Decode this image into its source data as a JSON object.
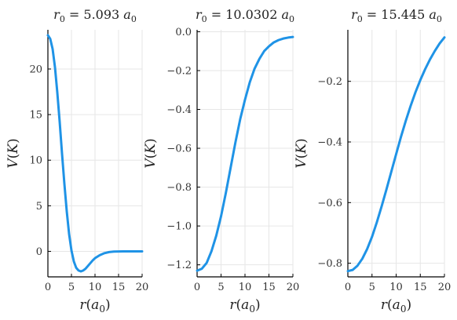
{
  "chart_data": [
    {
      "type": "line",
      "title": "r_0 = 5.093 a_0",
      "title_parts": {
        "var": "r",
        "sub": "0",
        "eq": " = 5.093 ",
        "unit": "a",
        "unit_sub": "0"
      },
      "xlabel": "r(a_0)",
      "ylabel": "V(K)",
      "xlim": [
        0,
        20
      ],
      "ylim": [
        -2.8,
        24.3
      ],
      "xticks": [
        0,
        5,
        10,
        15,
        20
      ],
      "xtick_labels": [
        "0",
        "5",
        "10",
        "15",
        "20"
      ],
      "yticks": [
        0,
        5,
        10,
        15,
        20
      ],
      "ytick_labels": [
        "0",
        "5",
        "10",
        "15",
        "20"
      ],
      "grid": true,
      "color": "#1f93e6",
      "x": [
        0,
        0.5,
        1,
        1.5,
        2,
        2.5,
        3,
        3.5,
        4,
        4.5,
        5,
        5.5,
        6,
        6.5,
        7,
        7.5,
        8,
        8.5,
        9,
        9.5,
        10,
        11,
        12,
        13,
        14,
        15,
        16,
        17,
        18,
        19,
        20
      ],
      "y": [
        23.7,
        23.3,
        22.2,
        20.2,
        17.4,
        14.2,
        10.7,
        7.4,
        4.4,
        1.9,
        0.1,
        -1.1,
        -1.8,
        -2.1,
        -2.2,
        -2.1,
        -1.9,
        -1.6,
        -1.3,
        -1.0,
        -0.75,
        -0.42,
        -0.2,
        -0.08,
        -0.03,
        -0.01,
        0,
        0,
        0,
        0,
        0
      ]
    },
    {
      "type": "line",
      "title": "r_0 = 10.0302 a_0",
      "title_parts": {
        "var": "r",
        "sub": "0",
        "eq": " = 10.0302 ",
        "unit": "a",
        "unit_sub": "0"
      },
      "xlabel": "r(a_0)",
      "ylabel": "V(K)",
      "xlim": [
        0,
        20
      ],
      "ylim": [
        -1.262,
        0.01
      ],
      "xticks": [
        0,
        5,
        10,
        15,
        20
      ],
      "xtick_labels": [
        "0",
        "5",
        "10",
        "15",
        "20"
      ],
      "yticks": [
        0,
        -0.2,
        -0.4,
        -0.6,
        -0.8,
        -1.0,
        -1.2
      ],
      "ytick_labels": [
        "0.0",
        "−0.2",
        "−0.4",
        "−0.6",
        "−0.8",
        "−1.0",
        "−1.2"
      ],
      "grid": true,
      "color": "#1f93e6",
      "x": [
        0,
        1,
        2,
        3,
        4,
        5,
        6,
        7,
        8,
        9,
        10,
        11,
        12,
        13,
        14,
        15,
        16,
        17,
        18,
        19,
        20
      ],
      "y": [
        -1.23,
        -1.22,
        -1.19,
        -1.13,
        -1.05,
        -0.95,
        -0.83,
        -0.7,
        -0.57,
        -0.45,
        -0.35,
        -0.26,
        -0.19,
        -0.14,
        -0.1,
        -0.075,
        -0.055,
        -0.043,
        -0.035,
        -0.03,
        -0.027
      ]
    },
    {
      "type": "line",
      "title": "r_0 = 15.445 a_0",
      "title_parts": {
        "var": "r",
        "sub": "0",
        "eq": " = 15.445 ",
        "unit": "a",
        "unit_sub": "0"
      },
      "xlabel": "r(a_0)",
      "ylabel": "V(K)",
      "xlim": [
        0,
        20
      ],
      "ylim": [
        -0.845,
        -0.03
      ],
      "xticks": [
        0,
        5,
        10,
        15,
        20
      ],
      "xtick_labels": [
        "0",
        "5",
        "10",
        "15",
        "20"
      ],
      "yticks": [
        -0.2,
        -0.4,
        -0.6,
        -0.8
      ],
      "ytick_labels": [
        "−0.2",
        "−0.4",
        "−0.6",
        "−0.8"
      ],
      "grid": true,
      "color": "#1f93e6",
      "x": [
        0,
        1,
        2,
        3,
        4,
        5,
        6,
        7,
        8,
        9,
        10,
        11,
        12,
        13,
        14,
        15,
        16,
        17,
        18,
        19,
        20
      ],
      "y": [
        -0.826,
        -0.822,
        -0.808,
        -0.785,
        -0.753,
        -0.713,
        -0.665,
        -0.612,
        -0.556,
        -0.498,
        -0.44,
        -0.383,
        -0.33,
        -0.281,
        -0.236,
        -0.196,
        -0.16,
        -0.128,
        -0.1,
        -0.075,
        -0.055
      ]
    }
  ]
}
